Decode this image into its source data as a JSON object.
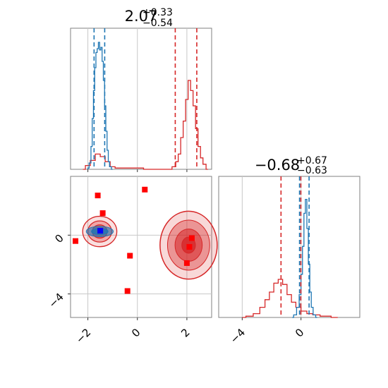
{
  "chart_data": {
    "type": "corner",
    "colors": {
      "blue": "#1f77b4",
      "red": "#d62728",
      "grid": "#c8c8c8",
      "frame": "#808080",
      "marker_red": "#ff0000",
      "marker_blue": "#0000ff"
    },
    "param1": {
      "title": {
        "median": "2.07",
        "upper": "+0.33",
        "lower": "−0.54"
      },
      "range": [
        -2.7,
        3.0
      ],
      "ticks": [
        -2,
        0,
        2
      ],
      "tick_labels": [
        "−2",
        "0",
        "2"
      ],
      "quantiles": {
        "blue": [
          -1.75,
          -1.32
        ],
        "red": [
          1.53,
          2.4
        ]
      }
    },
    "param2": {
      "title": {
        "median": "−0.68",
        "upper": "+0.67",
        "lower": "−0.63"
      },
      "range": [
        -5.6,
        4.0
      ],
      "ticks": [
        -4,
        0
      ],
      "tick_labels": [
        "−4",
        "0"
      ],
      "quantiles": {
        "blue": [
          -0.1,
          0.55
        ],
        "red": [
          -1.36,
          -0.01
        ]
      }
    },
    "hist1": {
      "blue": [
        [
          -2.0,
          0.01
        ],
        [
          -1.9,
          0.05
        ],
        [
          -1.85,
          0.18
        ],
        [
          -1.8,
          0.4
        ],
        [
          -1.75,
          0.62
        ],
        [
          -1.7,
          0.8
        ],
        [
          -1.65,
          0.92
        ],
        [
          -1.6,
          0.95
        ],
        [
          -1.55,
          1.0
        ],
        [
          -1.5,
          0.94
        ],
        [
          -1.45,
          0.96
        ],
        [
          -1.4,
          0.85
        ],
        [
          -1.35,
          0.7
        ],
        [
          -1.3,
          0.5
        ],
        [
          -1.25,
          0.3
        ],
        [
          -1.2,
          0.15
        ],
        [
          -1.15,
          0.06
        ],
        [
          -1.1,
          0.02
        ],
        [
          -1.0,
          0.0
        ]
      ],
      "red": [
        [
          -2.2,
          0.0
        ],
        [
          -2.0,
          0.03
        ],
        [
          -1.8,
          0.07
        ],
        [
          -1.6,
          0.12
        ],
        [
          -1.4,
          0.1
        ],
        [
          -1.2,
          0.06
        ],
        [
          -1.0,
          0.02
        ],
        [
          -0.8,
          0.01
        ],
        [
          1.3,
          0.0
        ],
        [
          1.5,
          0.02
        ],
        [
          1.6,
          0.06
        ],
        [
          1.7,
          0.12
        ],
        [
          1.8,
          0.25
        ],
        [
          1.9,
          0.38
        ],
        [
          2.0,
          0.55
        ],
        [
          2.1,
          0.7
        ],
        [
          2.2,
          0.62
        ],
        [
          2.3,
          0.5
        ],
        [
          2.4,
          0.32
        ],
        [
          2.5,
          0.18
        ],
        [
          2.6,
          0.09
        ],
        [
          2.7,
          0.04
        ],
        [
          2.85,
          0.0
        ]
      ]
    },
    "hist2": {
      "blue": [
        [
          -0.6,
          0.0
        ],
        [
          -0.4,
          0.02
        ],
        [
          -0.2,
          0.08
        ],
        [
          -0.05,
          0.18
        ],
        [
          0.05,
          0.34
        ],
        [
          0.15,
          0.56
        ],
        [
          0.25,
          0.82
        ],
        [
          0.35,
          0.93
        ],
        [
          0.45,
          0.7
        ],
        [
          0.55,
          0.42
        ],
        [
          0.65,
          0.2
        ],
        [
          0.75,
          0.08
        ],
        [
          0.9,
          0.02
        ],
        [
          1.1,
          0.0
        ]
      ],
      "red": [
        [
          -4.0,
          0.0
        ],
        [
          -3.5,
          0.01
        ],
        [
          -3.0,
          0.03
        ],
        [
          -2.6,
          0.08
        ],
        [
          -2.3,
          0.14
        ],
        [
          -2.0,
          0.2
        ],
        [
          -1.7,
          0.27
        ],
        [
          -1.4,
          0.3
        ],
        [
          -1.1,
          0.26
        ],
        [
          -0.8,
          0.18
        ],
        [
          -0.5,
          0.12
        ],
        [
          -0.2,
          0.08
        ],
        [
          0.2,
          0.05
        ],
        [
          0.6,
          0.03
        ],
        [
          1.0,
          0.02
        ],
        [
          1.6,
          0.01
        ],
        [
          2.5,
          0.0
        ]
      ]
    },
    "scatter": {
      "red_markers": [
        [
          -1.6,
          2.7
        ],
        [
          -1.4,
          1.5
        ],
        [
          -2.5,
          -0.4
        ],
        [
          0.3,
          3.1
        ],
        [
          -0.3,
          -1.4
        ],
        [
          -0.4,
          -3.8
        ],
        [
          2.1,
          -0.8
        ],
        [
          2.0,
          -1.9
        ],
        [
          2.2,
          -0.2
        ],
        [
          -1.5,
          0.3
        ]
      ],
      "blue_markers": [
        [
          -1.5,
          0.3
        ]
      ],
      "red_blob": {
        "cx": 2.07,
        "cy": -0.68,
        "sx": 0.55,
        "sy": 1.1
      },
      "blue_blob": {
        "cx": -1.52,
        "cy": 0.25,
        "sx": 0.3,
        "sy": 0.45
      }
    }
  }
}
